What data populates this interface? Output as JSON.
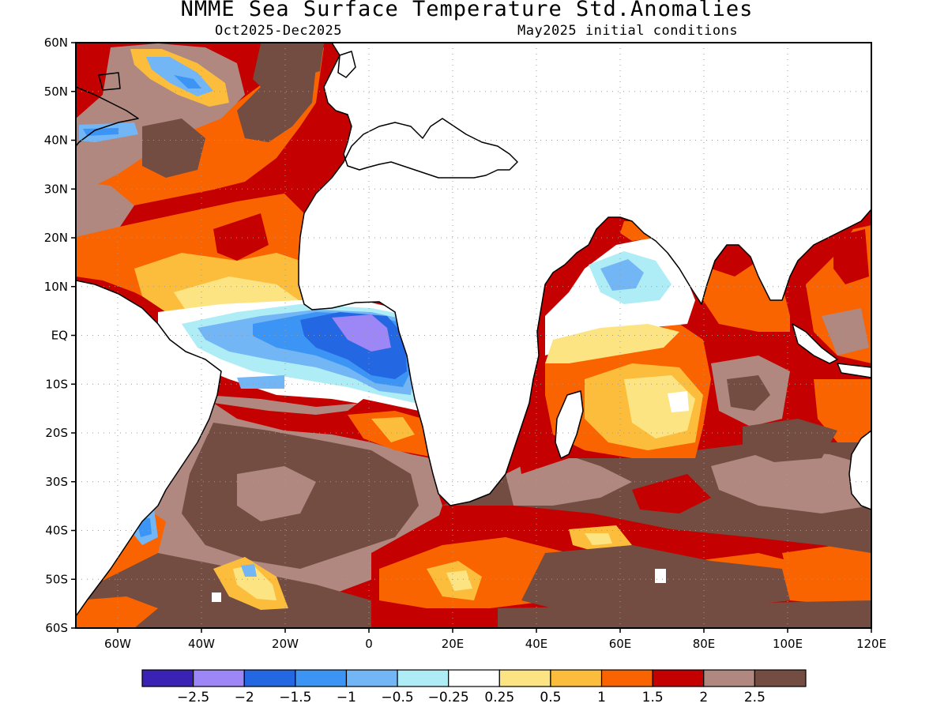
{
  "title": "NMME Sea Surface Temperature Std.Anomalies",
  "subtitle_left": "Oct2025-Dec2025",
  "subtitle_right": "May2025 initial conditions",
  "map": {
    "projection": "latitude-longitude",
    "lat_range": [
      -60,
      60
    ],
    "lon_range": [
      -70,
      120
    ],
    "grid": true,
    "y_ticks": [
      {
        "label": "60N",
        "lat": 60
      },
      {
        "label": "50N",
        "lat": 50
      },
      {
        "label": "40N",
        "lat": 40
      },
      {
        "label": "30N",
        "lat": 30
      },
      {
        "label": "20N",
        "lat": 20
      },
      {
        "label": "10N",
        "lat": 10
      },
      {
        "label": "EQ",
        "lat": 0
      },
      {
        "label": "10S",
        "lat": -10
      },
      {
        "label": "20S",
        "lat": -20
      },
      {
        "label": "30S",
        "lat": -30
      },
      {
        "label": "40S",
        "lat": -40
      },
      {
        "label": "50S",
        "lat": -50
      },
      {
        "label": "60S",
        "lat": -60
      }
    ],
    "x_ticks": [
      {
        "label": "60W",
        "lon": -60
      },
      {
        "label": "40W",
        "lon": -40
      },
      {
        "label": "20W",
        "lon": -20
      },
      {
        "label": "0",
        "lon": 0
      },
      {
        "label": "20E",
        "lon": 20
      },
      {
        "label": "40E",
        "lon": 40
      },
      {
        "label": "60E",
        "lon": 60
      },
      {
        "label": "80E",
        "lon": 80
      },
      {
        "label": "100E",
        "lon": 100
      },
      {
        "label": "120E",
        "lon": 120
      }
    ]
  },
  "colorbar": {
    "colors": [
      "#3a22b4",
      "#9d86f5",
      "#2467e2",
      "#3c95f4",
      "#73b6f6",
      "#aeecf6",
      "#ffffff",
      "#fde482",
      "#fdbd3c",
      "#fa6400",
      "#c40000",
      "#b08880",
      "#734c42"
    ],
    "labels": [
      "-2.5",
      "-2",
      "-1.5",
      "-1",
      "-0.5",
      "-0.25",
      "0.25",
      "0.5",
      "1",
      "1.5",
      "2",
      "2.5"
    ]
  }
}
